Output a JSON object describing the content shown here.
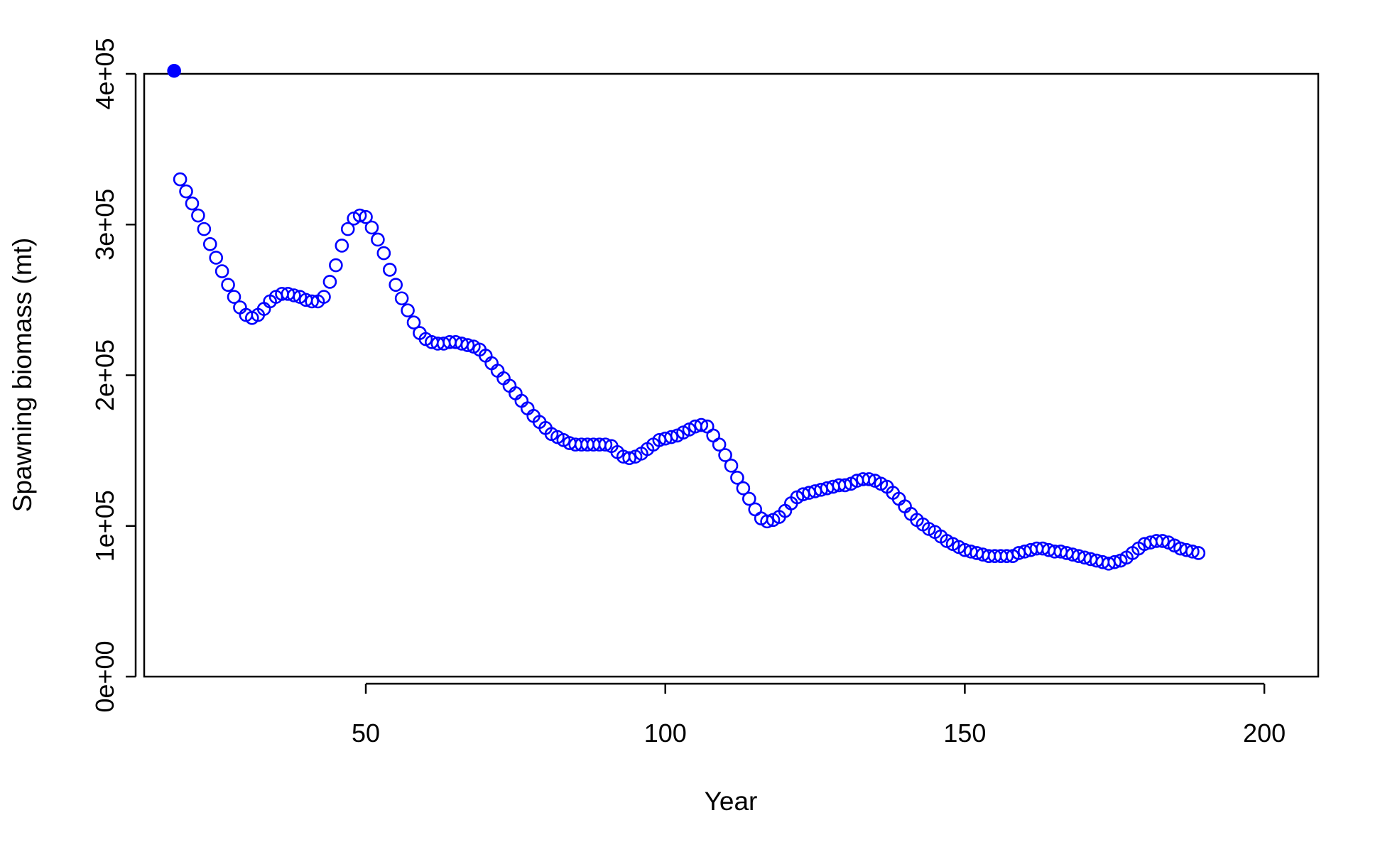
{
  "chart_data": {
    "type": "scatter",
    "title": "",
    "xlabel": "Year",
    "ylabel": "Spawning biomass (mt)",
    "xlim": [
      13,
      209
    ],
    "ylim": [
      0,
      400000
    ],
    "xticks": [
      {
        "value": 50,
        "label": "50"
      },
      {
        "value": 100,
        "label": "100"
      },
      {
        "value": 150,
        "label": "150"
      },
      {
        "value": 200,
        "label": "200"
      }
    ],
    "yticks": [
      {
        "value": 0,
        "label": "0e+00"
      },
      {
        "value": 100000,
        "label": "1e+05"
      },
      {
        "value": 200000,
        "label": "2e+05"
      },
      {
        "value": 300000,
        "label": "3e+05"
      },
      {
        "value": 400000,
        "label": "4e+05"
      }
    ],
    "grid": false,
    "color": "#0000ff",
    "series": [
      {
        "marker": "filled-circle",
        "x": [
          18
        ],
        "y": [
          402000
        ]
      },
      {
        "marker": "open-circle",
        "x_start": 19,
        "x_step": 1,
        "y": [
          330000,
          322000,
          314000,
          306000,
          297000,
          287000,
          278000,
          269000,
          260000,
          252000,
          245000,
          240000,
          238000,
          240000,
          244000,
          249000,
          252000,
          254000,
          254000,
          253000,
          252000,
          250000,
          249000,
          249000,
          252000,
          262000,
          273000,
          286000,
          297000,
          304000,
          306000,
          305000,
          298000,
          290000,
          281000,
          270000,
          260000,
          251000,
          243000,
          235000,
          228000,
          224000,
          222000,
          221000,
          221000,
          222000,
          222000,
          221000,
          220000,
          219000,
          217000,
          213000,
          208000,
          203000,
          198000,
          193000,
          188000,
          183000,
          178000,
          173000,
          169000,
          165000,
          161000,
          159000,
          157000,
          155000,
          154000,
          154000,
          154000,
          154000,
          154000,
          154000,
          153000,
          149000,
          146000,
          145000,
          146000,
          148000,
          151000,
          154000,
          157000,
          158000,
          159000,
          160000,
          162000,
          164000,
          166000,
          167000,
          166000,
          160000,
          154000,
          147000,
          140000,
          132000,
          125000,
          118000,
          111000,
          105000,
          103000,
          104000,
          106000,
          110000,
          115000,
          119000,
          121000,
          122000,
          123000,
          124000,
          125000,
          126000,
          127000,
          127000,
          128000,
          130000,
          131000,
          131000,
          130000,
          128000,
          126000,
          122000,
          118000,
          113000,
          108000,
          104000,
          101000,
          98000,
          96000,
          93000,
          90000,
          88000,
          86000,
          84000,
          83000,
          82000,
          81000,
          80000,
          80000,
          80000,
          80000,
          80000,
          82000,
          83000,
          84000,
          85000,
          85000,
          84000,
          83000,
          83000,
          82000,
          81000,
          80000,
          79000,
          78000,
          77000,
          76000,
          75000,
          76000,
          77000,
          79000,
          82000,
          85000,
          88000,
          89000,
          90000,
          90000,
          89000,
          87000,
          85000,
          84000,
          83000,
          82000
        ]
      }
    ]
  }
}
